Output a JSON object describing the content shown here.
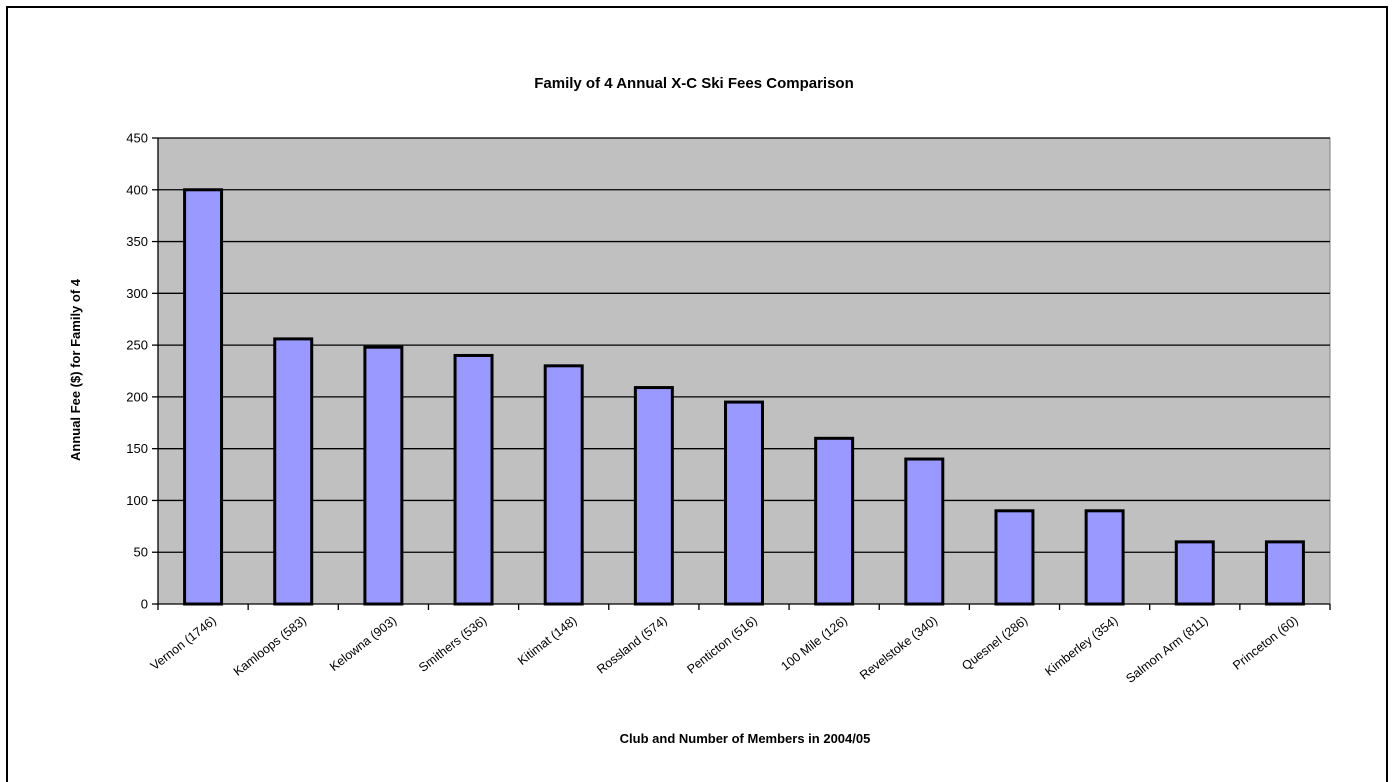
{
  "chart_data": {
    "type": "bar",
    "title": "Family of 4 Annual X-C Ski Fees Comparison",
    "xlabel": "Club and Number of Members in 2004/05",
    "ylabel": "Annual Fee ($) for Family of 4",
    "categories": [
      "Vernon (1746)",
      "Kamloops (583)",
      "Kelowna (903)",
      "Smithers (536)",
      "Kitimat (148)",
      "Rossland (574)",
      "Penticton (516)",
      "100 Mile (126)",
      "Revelstoke (340)",
      "Quesnel (286)",
      "Kimberley (354)",
      "Salmon Arm (811)",
      "Princeton (60)"
    ],
    "values": [
      400,
      256,
      248,
      240,
      230,
      209,
      195,
      160,
      140,
      90,
      90,
      60,
      60
    ],
    "ylim": [
      0,
      450
    ],
    "yticks": [
      0,
      50,
      100,
      150,
      200,
      250,
      300,
      350,
      400,
      450
    ],
    "grid": true,
    "legend": "none",
    "colors": {
      "plot_background": "#c0c0c0",
      "bar_fill": "#9999ff",
      "bar_stroke": "#000000",
      "grid": "#000000"
    }
  }
}
